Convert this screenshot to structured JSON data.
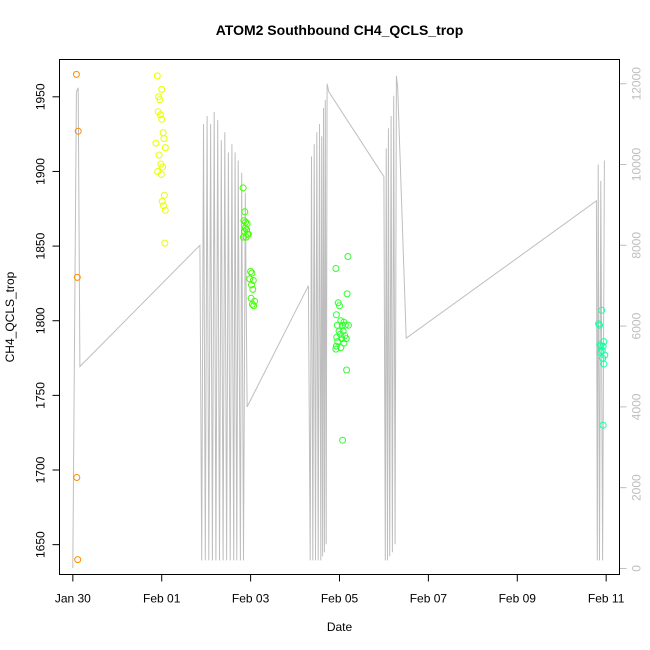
{
  "chart_data": {
    "type": "scatter",
    "title": "ATOM2 Southbound CH4_QCLS_trop",
    "xlabel": "Date",
    "ylabel": "CH4_QCLS_trop",
    "x_start_date": "2016-01-30",
    "xlim_days": [
      -0.3,
      12.3
    ],
    "ylim": [
      1630,
      1975
    ],
    "y2lim": [
      -150,
      12600
    ],
    "x_ticks": [
      {
        "day": 0,
        "label": "Jan 30"
      },
      {
        "day": 2,
        "label": "Feb 01"
      },
      {
        "day": 4,
        "label": "Feb 03"
      },
      {
        "day": 6,
        "label": "Feb 05"
      },
      {
        "day": 8,
        "label": "Feb 07"
      },
      {
        "day": 10,
        "label": "Feb 09"
      },
      {
        "day": 12,
        "label": "Feb 11"
      }
    ],
    "y_ticks": [
      1650,
      1700,
      1750,
      1800,
      1850,
      1900,
      1950
    ],
    "y2_ticks": [
      0,
      2000,
      4000,
      6000,
      8000,
      10000,
      12000
    ],
    "colors": {
      "altitude_line": "#bebebe",
      "flight1": "#ff8c00",
      "flight2": "#e6ff00",
      "flight3": "#40ff00",
      "flight4": "#2eff2e",
      "flight5": "#14ffa0"
    },
    "series": [
      {
        "color_key": "flight1",
        "points": [
          [
            0.08,
            1965
          ],
          [
            0.12,
            1927
          ],
          [
            0.1,
            1829
          ],
          [
            0.09,
            1695
          ],
          [
            0.11,
            1640
          ]
        ]
      },
      {
        "color_key": "flight2",
        "points": [
          [
            1.9,
            1964
          ],
          [
            1.93,
            1950
          ],
          [
            1.96,
            1948
          ],
          [
            2.0,
            1955
          ],
          [
            1.92,
            1940
          ],
          [
            1.97,
            1938
          ],
          [
            2.0,
            1935
          ],
          [
            2.03,
            1926
          ],
          [
            2.05,
            1922
          ],
          [
            1.87,
            1919
          ],
          [
            2.08,
            1916
          ],
          [
            1.94,
            1911
          ],
          [
            1.98,
            1905
          ],
          [
            2.02,
            1903
          ],
          [
            1.91,
            1900
          ],
          [
            1.99,
            1898
          ],
          [
            2.06,
            1884
          ],
          [
            2.01,
            1880
          ],
          [
            2.04,
            1877
          ],
          [
            2.08,
            1874
          ],
          [
            2.07,
            1852
          ]
        ]
      },
      {
        "color_key": "flight3",
        "points": [
          [
            3.83,
            1889
          ],
          [
            3.87,
            1873
          ],
          [
            3.85,
            1867
          ],
          [
            3.89,
            1866
          ],
          [
            3.92,
            1865
          ],
          [
            3.88,
            1862
          ],
          [
            3.91,
            1861
          ],
          [
            3.86,
            1860
          ],
          [
            3.93,
            1858
          ],
          [
            3.95,
            1858
          ],
          [
            3.84,
            1856
          ],
          [
            3.9,
            1856
          ],
          [
            4.0,
            1833
          ],
          [
            4.03,
            1832
          ],
          [
            3.98,
            1828
          ],
          [
            4.06,
            1827
          ],
          [
            4.02,
            1824
          ],
          [
            4.05,
            1821
          ],
          [
            4.01,
            1815
          ],
          [
            4.09,
            1813
          ],
          [
            4.04,
            1811
          ],
          [
            4.07,
            1810
          ]
        ]
      },
      {
        "color_key": "flight4",
        "points": [
          [
            5.92,
            1835
          ],
          [
            6.19,
            1843
          ],
          [
            6.17,
            1818
          ],
          [
            5.97,
            1812
          ],
          [
            6.0,
            1810
          ],
          [
            5.93,
            1804
          ],
          [
            6.03,
            1800
          ],
          [
            6.1,
            1799
          ],
          [
            5.95,
            1797
          ],
          [
            6.06,
            1797
          ],
          [
            6.13,
            1797
          ],
          [
            6.2,
            1797
          ],
          [
            5.99,
            1793
          ],
          [
            6.08,
            1793
          ],
          [
            6.02,
            1791
          ],
          [
            6.12,
            1790
          ],
          [
            5.94,
            1789
          ],
          [
            6.05,
            1788
          ],
          [
            6.15,
            1788
          ],
          [
            5.96,
            1786
          ],
          [
            6.1,
            1785
          ],
          [
            5.93,
            1783
          ],
          [
            6.03,
            1782
          ],
          [
            5.92,
            1781
          ],
          [
            6.16,
            1767
          ],
          [
            6.07,
            1720
          ]
        ]
      },
      {
        "color_key": "flight5",
        "points": [
          [
            11.9,
            1807
          ],
          [
            11.83,
            1798
          ],
          [
            11.85,
            1797
          ],
          [
            11.95,
            1786
          ],
          [
            11.86,
            1784
          ],
          [
            11.88,
            1783
          ],
          [
            11.93,
            1783
          ],
          [
            11.91,
            1780
          ],
          [
            11.87,
            1779
          ],
          [
            11.97,
            1777
          ],
          [
            11.92,
            1775
          ],
          [
            11.95,
            1771
          ],
          [
            11.93,
            1730
          ]
        ]
      }
    ],
    "altitude_series": {
      "y_axis": "right",
      "points": [
        [
          0,
          12
        ],
        [
          0.08,
          11800
        ],
        [
          0.12,
          11900
        ],
        [
          0.16,
          5000
        ],
        [
          2.86,
          8000
        ],
        [
          2.9,
          200
        ],
        [
          2.94,
          11000
        ],
        [
          2.98,
          200
        ],
        [
          3.02,
          11200
        ],
        [
          3.06,
          200
        ],
        [
          3.1,
          11000
        ],
        [
          3.14,
          200
        ],
        [
          3.18,
          11300
        ],
        [
          3.22,
          200
        ],
        [
          3.26,
          11100
        ],
        [
          3.3,
          200
        ],
        [
          3.34,
          10600
        ],
        [
          3.38,
          200
        ],
        [
          3.42,
          10800
        ],
        [
          3.46,
          200
        ],
        [
          3.5,
          10300
        ],
        [
          3.54,
          200
        ],
        [
          3.58,
          10500
        ],
        [
          3.62,
          200
        ],
        [
          3.65,
          10300
        ],
        [
          3.69,
          200
        ],
        [
          3.72,
          10100
        ],
        [
          3.77,
          200
        ],
        [
          3.8,
          9800
        ],
        [
          3.84,
          200
        ],
        [
          3.88,
          9300
        ],
        [
          3.92,
          4000
        ],
        [
          5.3,
          7000
        ],
        [
          5.34,
          200
        ],
        [
          5.37,
          10200
        ],
        [
          5.4,
          200
        ],
        [
          5.43,
          10500
        ],
        [
          5.46,
          200
        ],
        [
          5.49,
          10800
        ],
        [
          5.52,
          200
        ],
        [
          5.55,
          11000
        ],
        [
          5.58,
          200
        ],
        [
          5.6,
          10700
        ],
        [
          5.62,
          300
        ],
        [
          5.64,
          11400
        ],
        [
          5.66,
          400
        ],
        [
          5.68,
          11600
        ],
        [
          5.7,
          600
        ],
        [
          5.72,
          12000
        ],
        [
          5.76,
          11800
        ],
        [
          7.0,
          9700
        ],
        [
          7.03,
          200
        ],
        [
          7.05,
          10400
        ],
        [
          7.08,
          200
        ],
        [
          7.1,
          10900
        ],
        [
          7.13,
          300
        ],
        [
          7.16,
          11200
        ],
        [
          7.19,
          400
        ],
        [
          7.22,
          11700
        ],
        [
          7.25,
          600
        ],
        [
          7.28,
          12200
        ],
        [
          7.31,
          11900
        ],
        [
          7.5,
          5700
        ],
        [
          11.78,
          9100
        ],
        [
          11.8,
          200
        ],
        [
          11.82,
          10000
        ],
        [
          11.85,
          200
        ],
        [
          11.88,
          9600
        ],
        [
          11.92,
          200
        ],
        [
          11.96,
          10100
        ]
      ]
    }
  }
}
